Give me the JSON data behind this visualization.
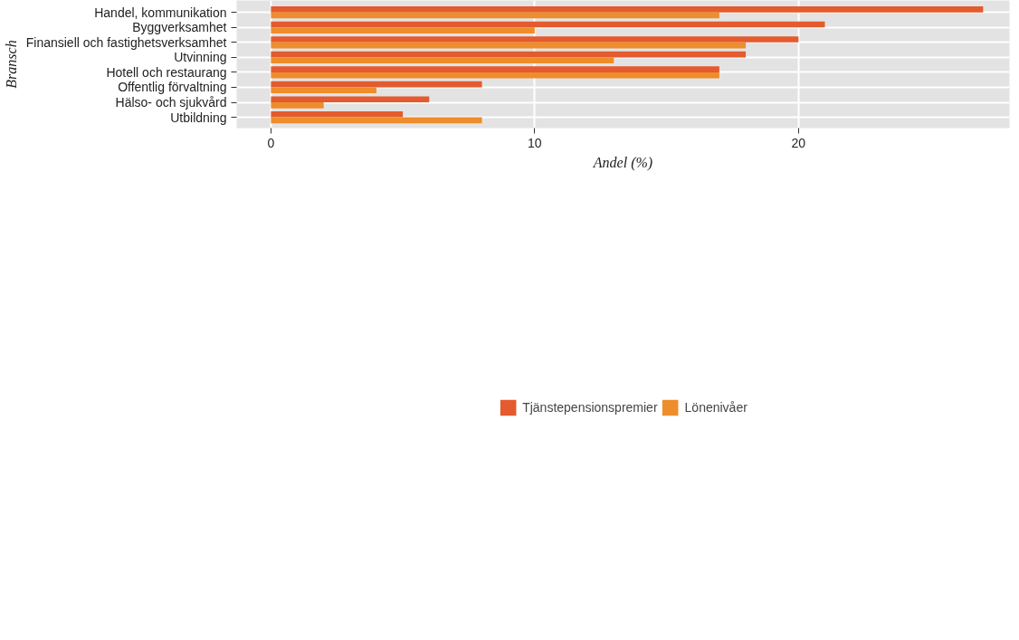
{
  "chart_data": {
    "type": "bar",
    "orientation": "horizontal",
    "xlabel": "Andel (%)",
    "ylabel": "Bransch",
    "categories": [
      "Handel, kommunikation",
      "Byggverksamhet",
      "Finansiell och fastighetsverksamhet",
      "Utvinning",
      "Hotell och restaurang",
      "Offentlig förvaltning",
      "Hälso- och sjukvård",
      "Utbildning"
    ],
    "series": [
      {
        "name": "Tjänstepensionspremier",
        "color": "#e35b2e",
        "values": [
          27,
          21,
          20,
          18,
          17,
          8,
          6,
          5
        ]
      },
      {
        "name": "Lönenivåer",
        "color": "#ee8d2c",
        "values": [
          17,
          10,
          18,
          13,
          17,
          4,
          2,
          8
        ]
      }
    ],
    "xlim": [
      -1.3,
      28
    ],
    "xticks": [
      0,
      10,
      20
    ],
    "grid": true,
    "legend": "bottom"
  }
}
